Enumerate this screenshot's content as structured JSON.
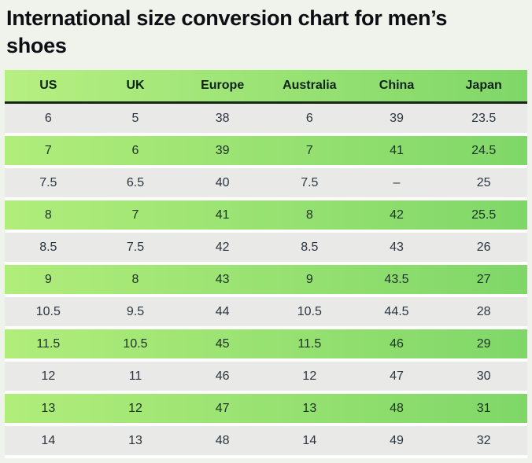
{
  "page": {
    "title": "International size conversion chart for men’s shoes",
    "background_color": "#f0f2ec",
    "title_color": "#0d0d13"
  },
  "table": {
    "columns": [
      "US",
      "UK",
      "Europe",
      "Australia",
      "China",
      "Japan"
    ],
    "rows": [
      [
        "6",
        "5",
        "38",
        "6",
        "39",
        "23.5"
      ],
      [
        "7",
        "6",
        "39",
        "7",
        "41",
        "24.5"
      ],
      [
        "7.5",
        "6.5",
        "40",
        "7.5",
        "–",
        "25"
      ],
      [
        "8",
        "7",
        "41",
        "8",
        "42",
        "25.5"
      ],
      [
        "8.5",
        "7.5",
        "42",
        "8.5",
        "43",
        "26"
      ],
      [
        "9",
        "8",
        "43",
        "9",
        "43.5",
        "27"
      ],
      [
        "10.5",
        "9.5",
        "44",
        "10.5",
        "44.5",
        "28"
      ],
      [
        "11.5",
        "10.5",
        "45",
        "11.5",
        "46",
        "29"
      ],
      [
        "12",
        "11",
        "46",
        "12",
        "47",
        "30"
      ],
      [
        "13",
        "12",
        "47",
        "13",
        "48",
        "31"
      ],
      [
        "14",
        "13",
        "48",
        "14",
        "49",
        "32"
      ]
    ],
    "colors": {
      "header_gradient_left": "#b7ef82",
      "header_gradient_right": "#7fd768",
      "green_row_gradient_left": "#b1ed7b",
      "green_row_gradient_right": "#7fd768",
      "gray_row": "#e9e9e7",
      "header_rule": "#17261b",
      "header_text": "#0e2316",
      "cell_text": "#2a3540"
    }
  }
}
